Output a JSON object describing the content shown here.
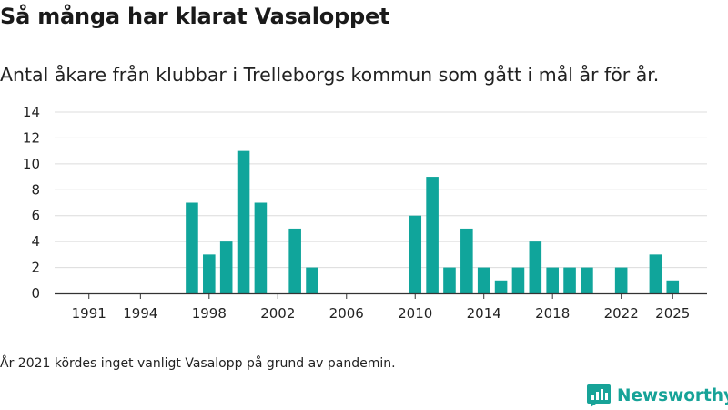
{
  "title": "Så många har klarat Vasaloppet",
  "subtitle": "Antal åkare från klubbar i Trelleborgs kommun som gått i mål år för år.",
  "footnote": "År 2021 kördes inget vanligt Vasalopp på grund av pandemin.",
  "logo": {
    "text": "Newsworthy",
    "icon": "newsworthy-logo-icon",
    "color": "#17a398"
  },
  "chart_data": {
    "type": "bar",
    "title": "",
    "xlabel": "",
    "ylabel": "",
    "bar_color": "#10a59b",
    "grid": true,
    "xlim": [
      1989,
      2027
    ],
    "ylim": [
      0,
      14
    ],
    "x_ticks": [
      1991,
      1994,
      1998,
      2002,
      2006,
      2010,
      2014,
      2018,
      2022,
      2025
    ],
    "y_ticks": [
      0,
      2,
      4,
      6,
      8,
      10,
      12,
      14
    ],
    "x": [
      1997,
      1998,
      1999,
      2000,
      2001,
      2003,
      2004,
      2010,
      2011,
      2012,
      2013,
      2014,
      2015,
      2016,
      2017,
      2018,
      2019,
      2020,
      2022,
      2024,
      2025
    ],
    "values": [
      7,
      3,
      4,
      11,
      7,
      5,
      2,
      6,
      9,
      2,
      5,
      2,
      1,
      2,
      4,
      2,
      2,
      2,
      2,
      3,
      1
    ]
  }
}
